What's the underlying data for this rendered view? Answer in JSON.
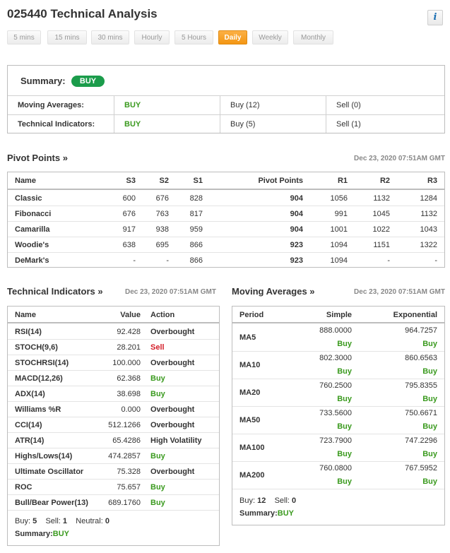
{
  "title": "025440 Technical Analysis",
  "info_icon": "i",
  "tabs": [
    "5 mins",
    "15 mins",
    "30 mins",
    "Hourly",
    "5 Hours",
    "Daily",
    "Weekly",
    "Monthly"
  ],
  "active_tab": "Daily",
  "summary": {
    "label": "Summary:",
    "badge": "BUY",
    "rows": [
      {
        "name": "Moving Averages:",
        "signal": "BUY",
        "buy": "Buy (12)",
        "sell": "Sell (0)"
      },
      {
        "name": "Technical Indicators:",
        "signal": "BUY",
        "buy": "Buy (5)",
        "sell": "Sell (1)"
      }
    ]
  },
  "pivot": {
    "title": "Pivot Points »",
    "date": "Dec 23, 2020 07:51AM GMT",
    "headers": [
      "Name",
      "S3",
      "S2",
      "S1",
      "Pivot Points",
      "R1",
      "R2",
      "R3"
    ],
    "rows": [
      [
        "Classic",
        "600",
        "676",
        "828",
        "904",
        "1056",
        "1132",
        "1284"
      ],
      [
        "Fibonacci",
        "676",
        "763",
        "817",
        "904",
        "991",
        "1045",
        "1132"
      ],
      [
        "Camarilla",
        "917",
        "938",
        "959",
        "904",
        "1001",
        "1022",
        "1043"
      ],
      [
        "Woodie's",
        "638",
        "695",
        "866",
        "923",
        "1094",
        "1151",
        "1322"
      ],
      [
        "DeMark's",
        "-",
        "-",
        "866",
        "923",
        "1094",
        "-",
        "-"
      ]
    ]
  },
  "technical": {
    "title": "Technical Indicators »",
    "date": "Dec 23, 2020 07:51AM GMT",
    "headers": [
      "Name",
      "Value",
      "Action"
    ],
    "rows": [
      [
        "RSI(14)",
        "92.428",
        "Overbought"
      ],
      [
        "STOCH(9,6)",
        "28.201",
        "Sell"
      ],
      [
        "STOCHRSI(14)",
        "100.000",
        "Overbought"
      ],
      [
        "MACD(12,26)",
        "62.368",
        "Buy"
      ],
      [
        "ADX(14)",
        "38.698",
        "Buy"
      ],
      [
        "Williams %R",
        "0.000",
        "Overbought"
      ],
      [
        "CCI(14)",
        "512.1266",
        "Overbought"
      ],
      [
        "ATR(14)",
        "65.4286",
        "High Volatility"
      ],
      [
        "Highs/Lows(14)",
        "474.2857",
        "Buy"
      ],
      [
        "Ultimate Oscillator",
        "75.328",
        "Overbought"
      ],
      [
        "ROC",
        "75.657",
        "Buy"
      ],
      [
        "Bull/Bear Power(13)",
        "689.1760",
        "Buy"
      ]
    ],
    "footer": {
      "buy_label": "Buy:",
      "buy_count": "5",
      "sell_label": "Sell:",
      "sell_count": "1",
      "neutral_label": "Neutral:",
      "neutral_count": "0",
      "summary_label": "Summary:",
      "summary_value": "BUY"
    }
  },
  "moving": {
    "title": "Moving Averages »",
    "date": "Dec 23, 2020 07:51AM GMT",
    "headers": [
      "Period",
      "Simple",
      "Exponential"
    ],
    "rows": [
      [
        "MA5",
        "888.0000",
        "Buy",
        "964.7257",
        "Buy"
      ],
      [
        "MA10",
        "802.3000",
        "Buy",
        "860.6563",
        "Buy"
      ],
      [
        "MA20",
        "760.2500",
        "Buy",
        "795.8355",
        "Buy"
      ],
      [
        "MA50",
        "733.5600",
        "Buy",
        "750.6671",
        "Buy"
      ],
      [
        "MA100",
        "723.7900",
        "Buy",
        "747.2296",
        "Buy"
      ],
      [
        "MA200",
        "760.0800",
        "Buy",
        "767.5952",
        "Buy"
      ]
    ],
    "footer": {
      "buy_label": "Buy:",
      "buy_count": "12",
      "sell_label": "Sell:",
      "sell_count": "0",
      "summary_label": "Summary:",
      "summary_value": "BUY"
    }
  },
  "colors": {
    "buy": "#3a9a1e",
    "sell": "#d4202a",
    "active_tab": "#f39613",
    "badge": "#1b9c4b"
  }
}
